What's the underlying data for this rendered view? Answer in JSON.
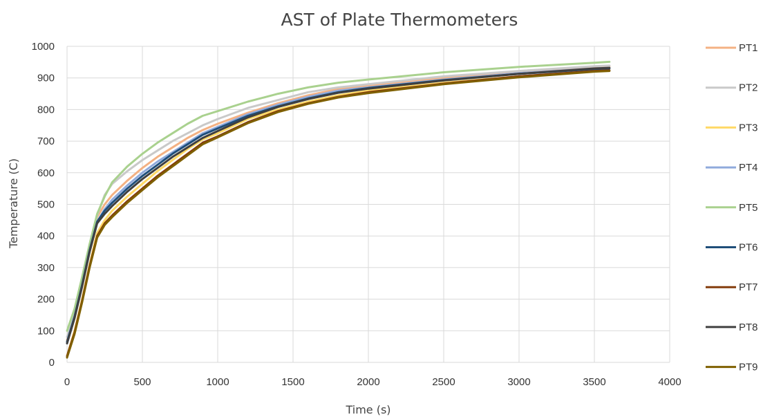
{
  "chart_data": {
    "type": "line",
    "title": "AST of Plate Thermometers",
    "xlabel": "Time (s)",
    "ylabel": "Temperature (C)",
    "xlim": [
      0,
      4000
    ],
    "ylim": [
      0,
      1000
    ],
    "xticks": [
      0,
      500,
      1000,
      1500,
      2000,
      2500,
      3000,
      3500,
      4000
    ],
    "yticks": [
      0,
      100,
      200,
      300,
      400,
      500,
      600,
      700,
      800,
      900,
      1000
    ],
    "grid": true,
    "legend_position": "right",
    "series": [
      {
        "name": "PT1",
        "color": "#f4b183",
        "x": [
          0,
          50,
          100,
          150,
          200,
          250,
          300,
          400,
          500,
          600,
          700,
          800,
          900,
          1000,
          1200,
          1400,
          1600,
          1800,
          2000,
          2500,
          3000,
          3500,
          3600
        ],
        "y": [
          70,
          150,
          250,
          360,
          460,
          500,
          530,
          575,
          615,
          650,
          680,
          710,
          735,
          755,
          790,
          820,
          845,
          865,
          875,
          900,
          920,
          935,
          937
        ]
      },
      {
        "name": "PT2",
        "color": "#c9c9c9",
        "x": [
          0,
          50,
          100,
          150,
          200,
          250,
          300,
          400,
          500,
          600,
          700,
          800,
          900,
          1000,
          1200,
          1400,
          1600,
          1800,
          2000,
          2500,
          3000,
          3500,
          3600
        ],
        "y": [
          80,
          155,
          255,
          365,
          465,
          530,
          565,
          605,
          640,
          670,
          700,
          725,
          750,
          770,
          805,
          830,
          855,
          870,
          880,
          905,
          922,
          937,
          939
        ]
      },
      {
        "name": "PT3",
        "color": "#ffd966",
        "x": [
          0,
          50,
          100,
          150,
          200,
          250,
          300,
          400,
          500,
          600,
          700,
          800,
          900,
          1000,
          1200,
          1400,
          1600,
          1800,
          2000,
          2500,
          3000,
          3500,
          3600
        ],
        "y": [
          20,
          100,
          200,
          310,
          410,
          450,
          480,
          525,
          565,
          605,
          640,
          675,
          705,
          725,
          770,
          800,
          825,
          845,
          860,
          885,
          905,
          922,
          924
        ]
      },
      {
        "name": "PT4",
        "color": "#8faadc",
        "x": [
          0,
          50,
          100,
          150,
          200,
          250,
          300,
          400,
          500,
          600,
          700,
          800,
          900,
          1000,
          1200,
          1400,
          1600,
          1800,
          2000,
          2500,
          3000,
          3500,
          3600
        ],
        "y": [
          60,
          140,
          240,
          350,
          445,
          485,
          515,
          560,
          600,
          635,
          665,
          695,
          725,
          745,
          785,
          815,
          840,
          860,
          870,
          895,
          915,
          930,
          932
        ]
      },
      {
        "name": "PT5",
        "color": "#a9d18e",
        "x": [
          0,
          50,
          100,
          150,
          200,
          250,
          300,
          400,
          500,
          600,
          700,
          800,
          900,
          1000,
          1200,
          1400,
          1600,
          1800,
          2000,
          2500,
          3000,
          3500,
          3600
        ],
        "y": [
          100,
          170,
          270,
          375,
          470,
          525,
          570,
          620,
          660,
          695,
          725,
          755,
          780,
          795,
          825,
          850,
          870,
          885,
          895,
          918,
          935,
          948,
          951
        ]
      },
      {
        "name": "PT6",
        "color": "#1f4e79",
        "x": [
          0,
          50,
          100,
          150,
          200,
          250,
          300,
          400,
          500,
          600,
          700,
          800,
          900,
          1000,
          1200,
          1400,
          1600,
          1800,
          2000,
          2500,
          3000,
          3500,
          3600
        ],
        "y": [
          65,
          145,
          245,
          355,
          445,
          480,
          505,
          550,
          590,
          625,
          660,
          690,
          720,
          740,
          780,
          810,
          835,
          855,
          868,
          893,
          913,
          928,
          930
        ]
      },
      {
        "name": "PT7",
        "color": "#843c0c",
        "x": [
          0,
          50,
          100,
          150,
          200,
          250,
          300,
          400,
          500,
          600,
          700,
          800,
          900,
          1000,
          1200,
          1400,
          1600,
          1800,
          2000,
          2500,
          3000,
          3500,
          3600
        ],
        "y": [
          20,
          95,
          195,
          305,
          400,
          440,
          465,
          510,
          550,
          590,
          625,
          660,
          695,
          715,
          760,
          795,
          820,
          840,
          855,
          882,
          905,
          922,
          924
        ]
      },
      {
        "name": "PT8",
        "color": "#404040",
        "x": [
          0,
          50,
          100,
          150,
          200,
          250,
          300,
          400,
          500,
          600,
          700,
          800,
          900,
          1000,
          1200,
          1400,
          1600,
          1800,
          2000,
          2500,
          3000,
          3500,
          3600
        ],
        "y": [
          60,
          140,
          240,
          350,
          440,
          470,
          495,
          540,
          580,
          615,
          650,
          680,
          710,
          732,
          775,
          808,
          833,
          853,
          866,
          892,
          913,
          930,
          932
        ]
      },
      {
        "name": "PT9",
        "color": "#7f6000",
        "x": [
          0,
          50,
          100,
          150,
          200,
          250,
          300,
          400,
          500,
          600,
          700,
          800,
          900,
          1000,
          1200,
          1400,
          1600,
          1800,
          2000,
          2500,
          3000,
          3500,
          3600
        ],
        "y": [
          15,
          90,
          190,
          300,
          395,
          435,
          460,
          505,
          545,
          585,
          620,
          655,
          690,
          712,
          757,
          792,
          818,
          838,
          852,
          880,
          902,
          920,
          922
        ]
      }
    ]
  }
}
